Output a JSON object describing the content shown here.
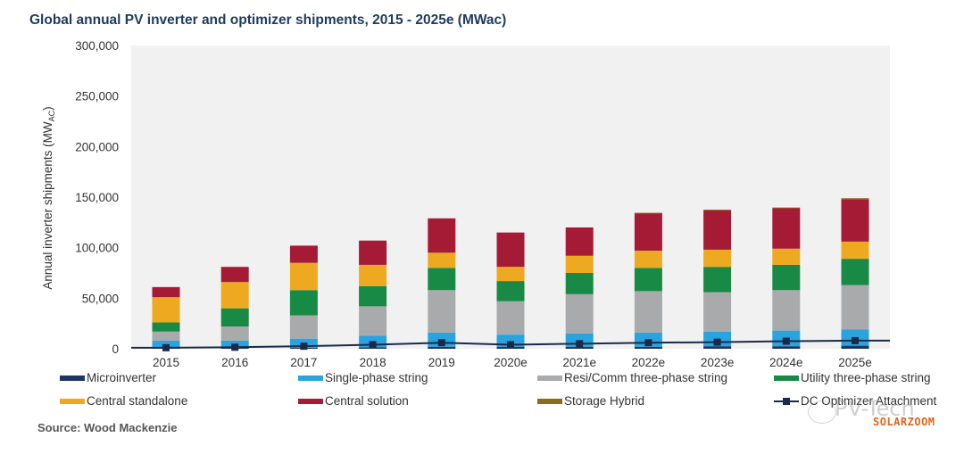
{
  "chart_data": {
    "type": "bar",
    "stacked": true,
    "title": "Global annual PV inverter and optimizer shipments, 2015 - 2025e (MWac)",
    "xlabel": "",
    "ylabel": "Annual inverter shipments (MW",
    "ylabel_subscript": "AC",
    "ylabel_suffix": ")",
    "ylim": [
      0,
      300000
    ],
    "yticks": [
      0,
      50000,
      100000,
      150000,
      200000,
      250000,
      300000
    ],
    "ytick_labels": [
      "0",
      "50,000",
      "100,000",
      "150,000",
      "200,000",
      "250,000",
      "300,000"
    ],
    "grid": false,
    "legend_placement": "bottom",
    "categories": [
      "2015",
      "2016",
      "2017",
      "2018",
      "2019",
      "2020e",
      "2021e",
      "2022e",
      "2023e",
      "2024e",
      "2025e"
    ],
    "series": [
      {
        "name": "Microinverter",
        "color": "#1b3564",
        "kind": "bar",
        "values": [
          1000,
          1000,
          1000,
          1500,
          2000,
          2000,
          2000,
          2000,
          2500,
          2500,
          3000
        ]
      },
      {
        "name": "Single-phase string",
        "color": "#2aa4de",
        "kind": "bar",
        "values": [
          7000,
          7000,
          9000,
          11500,
          14000,
          12000,
          13000,
          14000,
          14500,
          15500,
          16000
        ]
      },
      {
        "name": "Resi/Comm three-phase string",
        "color": "#a9aaac",
        "kind": "bar",
        "values": [
          9000,
          14000,
          23000,
          29000,
          42000,
          33000,
          39000,
          41000,
          39000,
          40000,
          44000
        ]
      },
      {
        "name": "Utility three-phase string",
        "color": "#188a45",
        "kind": "bar",
        "values": [
          9000,
          18000,
          25000,
          20000,
          22000,
          20000,
          21000,
          23000,
          25000,
          25000,
          26000
        ]
      },
      {
        "name": "Central standalone",
        "color": "#eda920",
        "kind": "bar",
        "values": [
          25000,
          26000,
          27000,
          21000,
          15000,
          14000,
          17000,
          17000,
          17000,
          16000,
          17000
        ]
      },
      {
        "name": "Central solution",
        "color": "#a51b36",
        "kind": "bar",
        "values": [
          10000,
          15000,
          17000,
          24000,
          34000,
          34000,
          28000,
          37000,
          39000,
          40000,
          42000
        ]
      },
      {
        "name": "Storage Hybrid",
        "color": "#8b6a1e",
        "kind": "bar",
        "values": [
          0,
          0,
          0,
          0,
          0,
          0,
          0,
          500,
          600,
          700,
          900
        ]
      },
      {
        "name": "DC Optimizer Attachment",
        "color": "#1b2a4a",
        "kind": "line",
        "values": [
          1000,
          1500,
          2500,
          4000,
          6000,
          4000,
          5000,
          6000,
          6500,
          7500,
          8000
        ]
      }
    ]
  },
  "title": "Global annual PV inverter and optimizer shipments, 2015 - 2025e (MWac)",
  "source": "Source: Wood Mackenzie",
  "watermark": {
    "text1": "PV-Tech",
    "text2": "SOLARZOOM"
  }
}
